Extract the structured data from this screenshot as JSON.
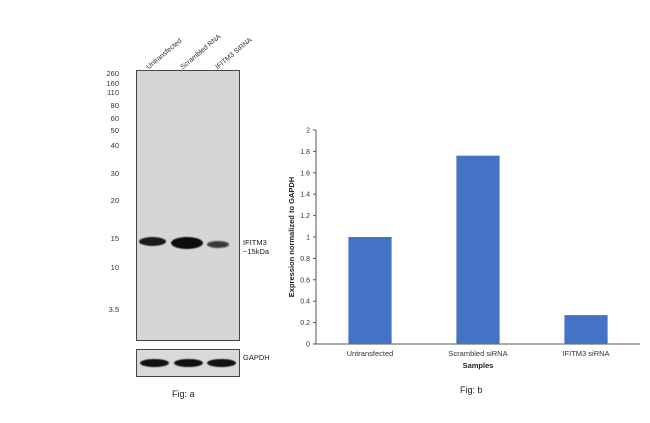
{
  "panel_a": {
    "lanes": [
      "Untransfected",
      "Scrambled RNA",
      "IFITM3 SiRNA"
    ],
    "mw_markers": [
      "260",
      "160",
      "110",
      "80",
      "60",
      "50",
      "40",
      "30",
      "20",
      "15",
      "10",
      "3.5"
    ],
    "target_label": "IFITM3",
    "target_size": "~15kDa",
    "loading_label": "GAPDH",
    "fig_label": "Fig: a"
  },
  "panel_b": {
    "fig_label": "Fig: b"
  },
  "chart_data": {
    "type": "bar",
    "categories": [
      "Untransfected",
      "Scrambled siRNA",
      "IFITM3 siRNA"
    ],
    "values": [
      1.0,
      1.76,
      0.27
    ],
    "xlabel": "Samples",
    "ylabel": "Expression normalized to GAPDH",
    "ylim": [
      0,
      2
    ],
    "yticks": [
      "0",
      "0.2",
      "0.4",
      "0.6",
      "0.8",
      "1",
      "1.2",
      "1.4",
      "1.6",
      "1.8",
      "2"
    ],
    "bar_color": "#4472c4",
    "grid": false,
    "legend": "none"
  }
}
